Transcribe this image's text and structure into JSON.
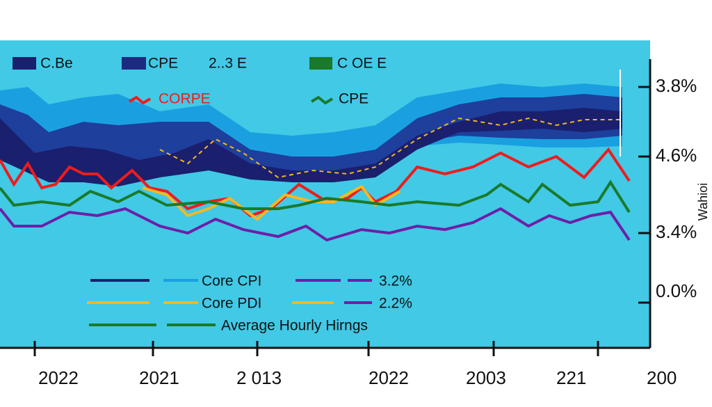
{
  "legend_top": {
    "rows": [
      [
        "C.Be",
        "CPE",
        "2..3 E",
        "C OE E"
      ],
      [
        "CORPE",
        "CPE"
      ]
    ]
  },
  "legend_bottom": {
    "rows": [
      [
        "Core  CPI",
        "3.2%"
      ],
      [
        "Core  PDI",
        "2.2%"
      ],
      [
        "Average Hourly  Hirngs"
      ]
    ]
  },
  "y_labels": [
    "3.8%",
    "4.6%",
    "3.4%",
    "0.0%"
  ],
  "y_axis_title": "Wahioi",
  "x_labels": [
    "2022",
    "2021",
    "2 013",
    "2022",
    "2003",
    "221",
    "200"
  ]
}
